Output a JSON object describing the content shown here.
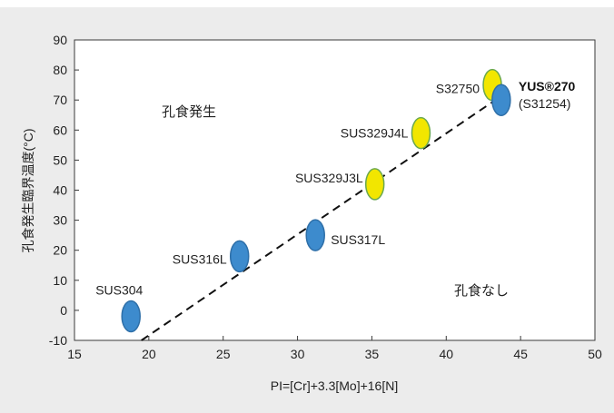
{
  "chart_data": {
    "type": "scatter",
    "xlabel": "PI=[Cr]+3.3[Mo]+16[N]",
    "ylabel": "孔食発生臨界温度(°C)",
    "xlim": [
      15,
      50
    ],
    "ylim": [
      -10,
      90
    ],
    "x_ticks": [
      "15",
      "20",
      "25",
      "30",
      "35",
      "40",
      "45",
      "50"
    ],
    "y_ticks": [
      "-10",
      "0",
      "10",
      "20",
      "30",
      "40",
      "50",
      "60",
      "70",
      "80",
      "90"
    ],
    "grid": false,
    "colors": {
      "blue": "#3d8bcd",
      "yellow": "#f2e600",
      "trend": "#111111"
    },
    "regions": {
      "above": "孔食発生",
      "below": "孔食なし"
    },
    "points": [
      {
        "label": "SUS304",
        "x": 18.8,
        "y": -2,
        "color": "blue"
      },
      {
        "label": "SUS316L",
        "x": 26.1,
        "y": 18,
        "color": "blue"
      },
      {
        "label": "SUS317L",
        "x": 31.2,
        "y": 25,
        "color": "blue"
      },
      {
        "label": "SUS329J3L",
        "x": 35.2,
        "y": 42,
        "color": "yellow"
      },
      {
        "label": "SUS329J4L",
        "x": 38.3,
        "y": 59,
        "color": "yellow"
      },
      {
        "label": "S32750",
        "x": 43.1,
        "y": 75,
        "color": "yellow"
      },
      {
        "label": "YUS®270",
        "sublabel": "(S31254)",
        "x": 43.7,
        "y": 70,
        "color": "blue"
      }
    ],
    "trend_line": {
      "x": [
        19.5,
        43.6
      ],
      "y": [
        -10,
        71
      ]
    }
  }
}
